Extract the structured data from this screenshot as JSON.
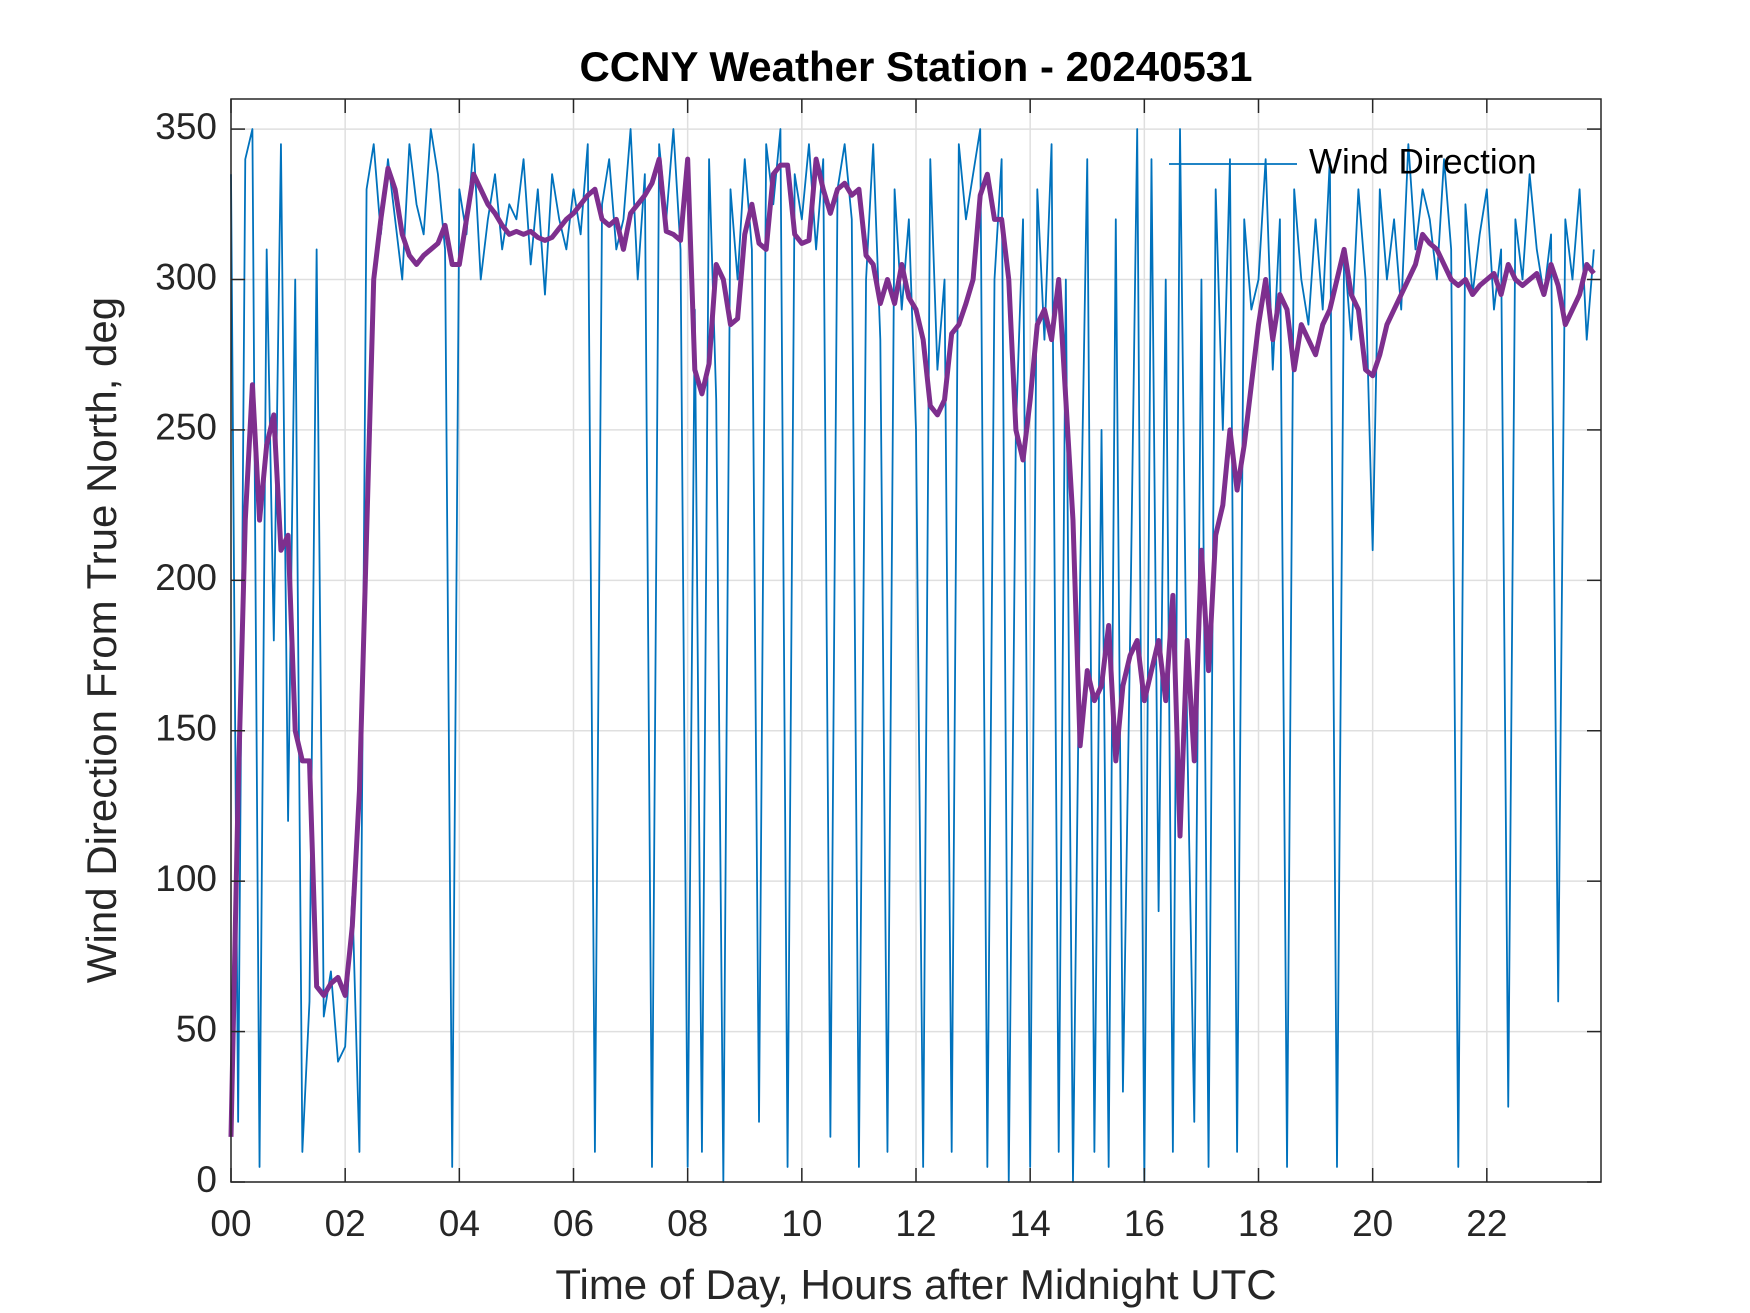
{
  "chart_data": {
    "type": "line",
    "title": "CCNY Weather Station - 20240531",
    "xlabel": "Time of Day, Hours after Midnight UTC",
    "ylabel": "Wind Direction From True North, deg",
    "xlim": [
      0,
      24
    ],
    "ylim": [
      0,
      360
    ],
    "xticks": [
      {
        "value": 0,
        "label": "00"
      },
      {
        "value": 2,
        "label": "02"
      },
      {
        "value": 4,
        "label": "04"
      },
      {
        "value": 6,
        "label": "06"
      },
      {
        "value": 8,
        "label": "08"
      },
      {
        "value": 10,
        "label": "10"
      },
      {
        "value": 12,
        "label": "12"
      },
      {
        "value": 14,
        "label": "14"
      },
      {
        "value": 16,
        "label": "16"
      },
      {
        "value": 18,
        "label": "18"
      },
      {
        "value": 20,
        "label": "20"
      },
      {
        "value": 22,
        "label": "22"
      }
    ],
    "yticks": [
      0,
      50,
      100,
      150,
      200,
      250,
      300,
      350
    ],
    "grid": true,
    "legend": "upper right",
    "x": [
      0,
      0.125,
      0.25,
      0.375,
      0.5,
      0.625,
      0.75,
      0.875,
      1,
      1.125,
      1.25,
      1.375,
      1.5,
      1.625,
      1.75,
      1.875,
      2,
      2.125,
      2.25,
      2.375,
      2.5,
      2.625,
      2.75,
      2.875,
      3,
      3.125,
      3.25,
      3.375,
      3.5,
      3.625,
      3.75,
      3.875,
      4,
      4.125,
      4.25,
      4.375,
      4.5,
      4.625,
      4.75,
      4.875,
      5,
      5.125,
      5.25,
      5.375,
      5.5,
      5.625,
      5.75,
      5.875,
      6,
      6.125,
      6.25,
      6.375,
      6.5,
      6.625,
      6.75,
      6.875,
      7,
      7.125,
      7.25,
      7.375,
      7.5,
      7.625,
      7.75,
      7.875,
      8,
      8.125,
      8.25,
      8.375,
      8.5,
      8.625,
      8.75,
      8.875,
      9,
      9.125,
      9.25,
      9.375,
      9.5,
      9.625,
      9.75,
      9.875,
      10,
      10.125,
      10.25,
      10.375,
      10.5,
      10.625,
      10.75,
      10.875,
      11,
      11.125,
      11.25,
      11.375,
      11.5,
      11.625,
      11.75,
      11.875,
      12,
      12.125,
      12.25,
      12.375,
      12.5,
      12.625,
      12.75,
      12.875,
      13,
      13.125,
      13.25,
      13.375,
      13.5,
      13.625,
      13.75,
      13.875,
      14,
      14.125,
      14.25,
      14.375,
      14.5,
      14.625,
      14.75,
      14.875,
      15,
      15.125,
      15.25,
      15.375,
      15.5,
      15.625,
      15.75,
      15.875,
      16,
      16.125,
      16.25,
      16.375,
      16.5,
      16.625,
      16.75,
      16.875,
      17,
      17.125,
      17.25,
      17.375,
      17.5,
      17.625,
      17.75,
      17.875,
      18,
      18.125,
      18.25,
      18.375,
      18.5,
      18.625,
      18.75,
      18.875,
      19,
      19.125,
      19.25,
      19.375,
      19.5,
      19.625,
      19.75,
      19.875,
      20,
      20.125,
      20.25,
      20.375,
      20.5,
      20.625,
      20.75,
      20.875,
      21,
      21.125,
      21.25,
      21.375,
      21.5,
      21.625,
      21.75,
      21.875,
      22,
      22.125,
      22.25,
      22.375,
      22.5,
      22.625,
      22.75,
      22.875,
      23,
      23.125,
      23.25,
      23.375,
      23.5,
      23.625,
      23.75,
      23.875
    ],
    "series": [
      {
        "name": "Wind Direction",
        "color": "#0072BD",
        "values": [
          335,
          20,
          340,
          350,
          5,
          310,
          180,
          345,
          120,
          300,
          10,
          60,
          310,
          55,
          70,
          40,
          45,
          95,
          10,
          330,
          345,
          315,
          340,
          320,
          300,
          345,
          325,
          315,
          350,
          335,
          310,
          5,
          330,
          315,
          345,
          300,
          320,
          335,
          310,
          325,
          320,
          340,
          305,
          330,
          295,
          335,
          320,
          310,
          330,
          315,
          345,
          10,
          325,
          340,
          310,
          320,
          350,
          300,
          335,
          5,
          345,
          320,
          350,
          310,
          5,
          290,
          10,
          340,
          260,
          0,
          330,
          300,
          340,
          310,
          20,
          345,
          325,
          350,
          5,
          335,
          320,
          345,
          310,
          340,
          15,
          330,
          345,
          320,
          5,
          300,
          345,
          280,
          10,
          330,
          290,
          320,
          250,
          5,
          340,
          270,
          300,
          10,
          345,
          320,
          335,
          350,
          5,
          300,
          340,
          0,
          250,
          320,
          5,
          330,
          280,
          345,
          10,
          300,
          0,
          200,
          340,
          10,
          250,
          5,
          320,
          30,
          180,
          350,
          0,
          340,
          90,
          300,
          10,
          350,
          150,
          20,
          300,
          5,
          330,
          250,
          340,
          10,
          320,
          290,
          300,
          340,
          270,
          320,
          5,
          330,
          300,
          285,
          320,
          290,
          340,
          5,
          310,
          280,
          330,
          300,
          210,
          330,
          300,
          320,
          290,
          345,
          310,
          330,
          320,
          300,
          340,
          310,
          5,
          325,
          295,
          315,
          330,
          290,
          310,
          25,
          320,
          300,
          335,
          310,
          295,
          315,
          60,
          320,
          300,
          330,
          280,
          310
        ]
      },
      {
        "color": "#7E2F8E",
        "values": [
          15,
          130,
          220,
          265,
          220,
          245,
          255,
          210,
          215,
          150,
          140,
          140,
          65,
          62,
          66,
          68,
          62,
          85,
          130,
          215,
          300,
          320,
          337,
          330,
          315,
          308,
          305,
          308,
          310,
          312,
          318,
          305,
          305,
          320,
          335,
          330,
          325,
          322,
          318,
          315,
          316,
          315,
          316,
          314,
          313,
          314,
          317,
          320,
          322,
          325,
          328,
          330,
          320,
          318,
          320,
          310,
          322,
          325,
          328,
          332,
          340,
          316,
          315,
          313,
          340,
          270,
          262,
          272,
          305,
          300,
          285,
          287,
          315,
          325,
          312,
          310,
          335,
          338,
          338,
          315,
          312,
          313,
          340,
          330,
          322,
          330,
          332,
          328,
          330,
          308,
          305,
          292,
          300,
          292,
          305,
          294,
          290,
          280,
          258,
          255,
          260,
          282,
          285,
          292,
          300,
          328,
          335,
          320,
          320,
          300,
          250,
          240,
          260,
          285,
          290,
          280,
          300,
          260,
          220,
          145,
          170,
          160,
          165,
          185,
          140,
          165,
          175,
          180,
          160,
          170,
          180,
          160,
          195,
          115,
          180,
          140,
          210,
          170,
          215,
          225,
          250,
          230,
          245,
          265,
          285,
          300,
          280,
          295,
          290,
          270,
          285,
          280,
          275,
          285,
          290,
          300,
          310,
          295,
          290,
          270,
          268,
          275,
          285,
          290,
          295,
          300,
          305,
          315,
          312,
          310,
          305,
          300,
          298,
          300,
          295,
          298,
          300,
          302,
          295,
          305,
          300,
          298,
          300,
          302,
          295,
          305,
          298,
          285,
          290,
          295,
          305,
          302
        ]
      }
    ]
  }
}
